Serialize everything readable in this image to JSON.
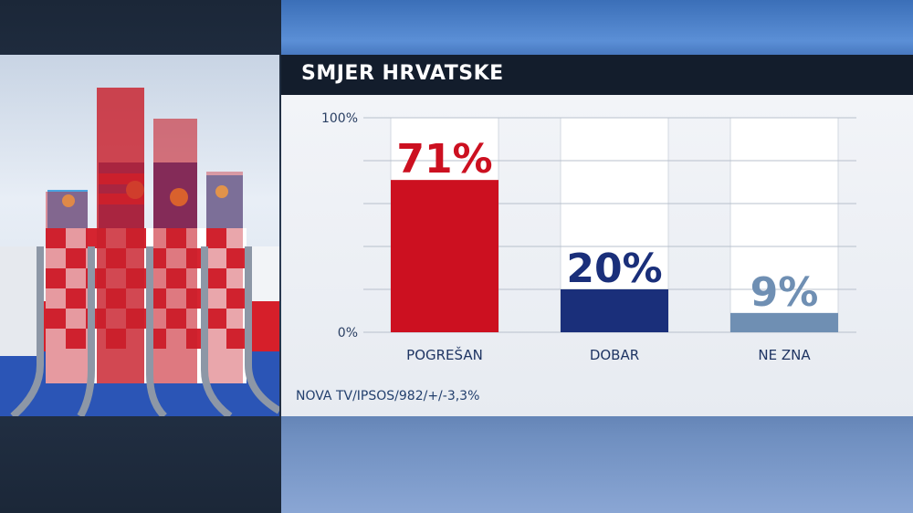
{
  "title": "SMJER HRVATSKE",
  "source": "NOVA TV/IPSOS/982/+/-3,3%",
  "colors": {
    "pogresan": "#cc1020",
    "dobar": "#1a2f7a",
    "ne_zna": "#6f8fb3"
  },
  "chart_data": {
    "type": "bar",
    "categories": [
      "POGREŠAN",
      "DOBAR",
      "NE ZNA"
    ],
    "values": [
      71,
      20,
      9
    ],
    "value_labels": [
      "71%",
      "20%",
      "9%"
    ],
    "ylim": [
      0,
      100
    ],
    "y_tick_labels": [
      "100%",
      "0%"
    ],
    "grid": true
  }
}
